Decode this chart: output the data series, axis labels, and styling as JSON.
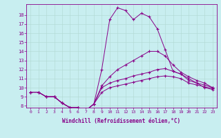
{
  "xlabel": "Windchill (Refroidissement éolien,°C)",
  "bg_color": "#c8eef0",
  "grid_color": "#b0d8d0",
  "line_color": "#880088",
  "marker": "+",
  "xlim": [
    -0.5,
    23.5
  ],
  "ylim": [
    7.8,
    19.2
  ],
  "xticks": [
    0,
    1,
    2,
    3,
    4,
    5,
    6,
    7,
    8,
    9,
    10,
    11,
    12,
    13,
    14,
    15,
    16,
    17,
    18,
    19,
    20,
    21,
    22,
    23
  ],
  "yticks": [
    8,
    9,
    10,
    11,
    12,
    13,
    14,
    15,
    16,
    17,
    18
  ],
  "series": [
    [
      9.5,
      9.5,
      9.0,
      9.0,
      8.3,
      7.8,
      7.8,
      7.5,
      8.2,
      9.5,
      10.0,
      10.2,
      10.4,
      10.6,
      10.8,
      11.0,
      11.2,
      11.3,
      11.2,
      11.0,
      10.5,
      10.3,
      10.1,
      9.9
    ],
    [
      9.5,
      9.5,
      9.0,
      9.0,
      8.3,
      7.8,
      7.8,
      7.5,
      8.2,
      10.0,
      10.5,
      10.8,
      11.0,
      11.3,
      11.5,
      11.7,
      12.0,
      12.1,
      11.8,
      11.5,
      10.8,
      10.5,
      10.3,
      10.0
    ],
    [
      9.5,
      9.5,
      9.0,
      9.0,
      8.3,
      7.8,
      7.8,
      7.5,
      8.2,
      10.2,
      11.2,
      12.0,
      12.5,
      13.0,
      13.5,
      14.0,
      14.0,
      13.5,
      12.5,
      11.7,
      11.2,
      10.8,
      10.5,
      10.0
    ],
    [
      9.5,
      9.5,
      9.0,
      9.0,
      8.3,
      7.8,
      7.8,
      7.5,
      8.2,
      12.0,
      17.5,
      18.8,
      18.5,
      17.5,
      18.2,
      17.8,
      16.5,
      14.2,
      11.8,
      11.5,
      11.0,
      10.5,
      10.0,
      9.8
    ]
  ]
}
